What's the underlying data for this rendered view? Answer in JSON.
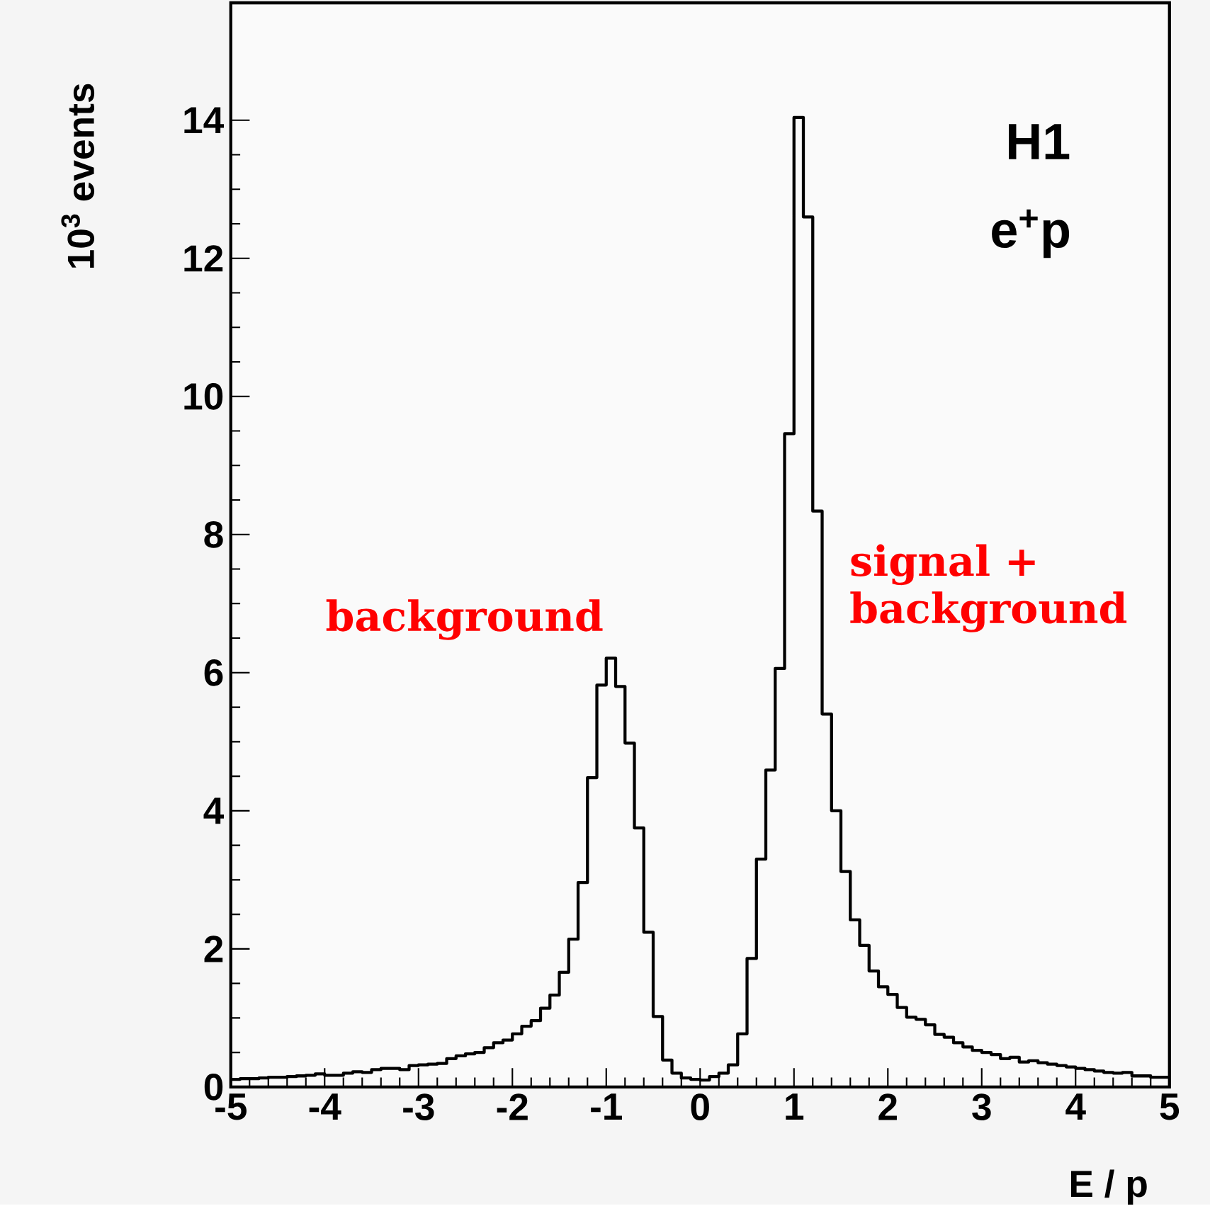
{
  "chart_data": {
    "type": "histogram",
    "xlabel": "E / p",
    "ylabel": "10$^{3}$ events",
    "annotations": [
      "H1",
      "e$^{+}$p",
      "background",
      "signal + background"
    ],
    "bins": [
      -5,
      -4.9,
      -4.8,
      -4.7,
      -4.6,
      -4.5,
      -4.4,
      -4.3,
      -4.2,
      -4.1,
      -4,
      -3.9,
      -3.8,
      -3.7,
      -3.6,
      -3.5,
      -3.4,
      -3.3,
      -3.2,
      -3.1,
      -3,
      -2.9,
      -2.8,
      -2.7,
      -2.6,
      -2.5,
      -2.4,
      -2.3,
      -2.2,
      -2.1,
      -2,
      -1.9,
      -1.8,
      -1.7,
      -1.6,
      -1.5,
      -1.4,
      -1.3,
      -1.2,
      -1.1,
      -1,
      -0.9,
      -0.8,
      -0.7,
      -0.6,
      -0.5,
      -0.4,
      -0.3,
      -0.2,
      -0.1,
      0,
      0.1,
      0.2,
      0.3,
      0.4,
      0.5,
      0.6,
      0.7,
      0.8,
      0.9,
      1,
      1.1,
      1.2,
      1.3,
      1.4,
      1.5,
      1.6,
      1.7,
      1.8,
      1.9,
      2,
      2.1,
      2.2,
      2.3,
      2.4,
      2.5,
      2.6,
      2.7,
      2.8,
      2.9,
      3,
      3.1,
      3.2,
      3.3,
      3.4,
      3.5,
      3.6,
      3.7,
      3.8,
      3.9,
      4,
      4.1,
      4.2,
      4.3,
      4.4,
      4.5,
      4.6,
      4.7,
      4.8,
      4.9,
      5
    ],
    "values": [
      0.11,
      0.12,
      0.12,
      0.13,
      0.14,
      0.14,
      0.15,
      0.16,
      0.17,
      0.19,
      0.17,
      0.17,
      0.2,
      0.22,
      0.21,
      0.25,
      0.27,
      0.27,
      0.25,
      0.31,
      0.32,
      0.33,
      0.34,
      0.41,
      0.45,
      0.48,
      0.5,
      0.57,
      0.64,
      0.68,
      0.77,
      0.88,
      0.96,
      1.14,
      1.33,
      1.66,
      2.14,
      2.96,
      4.48,
      5.82,
      6.21,
      5.8,
      4.98,
      3.75,
      2.24,
      1.02,
      0.39,
      0.2,
      0.13,
      0.11,
      0.1,
      0.15,
      0.2,
      0.32,
      0.77,
      1.86,
      3.3,
      4.59,
      6.06,
      9.46,
      14.04,
      12.6,
      8.34,
      5.4,
      4.0,
      3.12,
      2.42,
      2.05,
      1.68,
      1.45,
      1.34,
      1.15,
      1.01,
      0.98,
      0.9,
      0.76,
      0.72,
      0.64,
      0.58,
      0.53,
      0.5,
      0.47,
      0.41,
      0.43,
      0.36,
      0.38,
      0.35,
      0.33,
      0.31,
      0.29,
      0.27,
      0.25,
      0.23,
      0.21,
      0.2,
      0.21,
      0.16,
      0.16,
      0.14,
      0.14
    ],
    "color": "#000000",
    "xlim": [
      -5,
      5
    ],
    "ylim": [
      0,
      15.7
    ],
    "xticks": [
      -5,
      -4,
      -3,
      -2,
      -1,
      0,
      1,
      2,
      3,
      4,
      5
    ],
    "yticks": [
      0,
      2,
      4,
      6,
      8,
      10,
      12,
      14
    ]
  }
}
